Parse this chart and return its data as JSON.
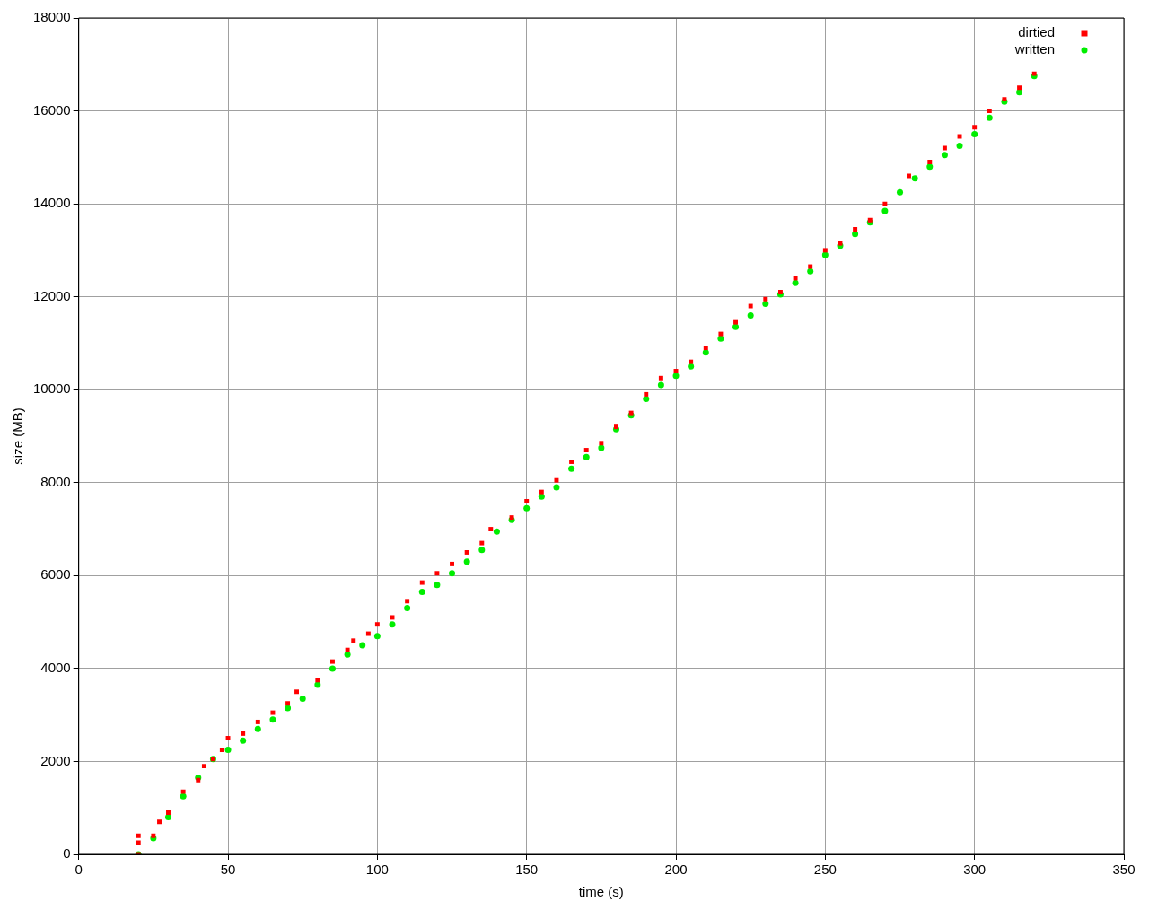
{
  "chart_data": {
    "type": "scatter",
    "xlabel": "time (s)",
    "ylabel": "size (MB)",
    "xlim": [
      0,
      350
    ],
    "xticks": [
      0,
      50,
      100,
      150,
      200,
      250,
      300,
      350
    ],
    "ylim": [
      0,
      18000
    ],
    "yticks": [
      0,
      2000,
      4000,
      6000,
      8000,
      10000,
      12000,
      14000,
      16000,
      18000
    ],
    "grid": true,
    "legend": "top right",
    "series": [
      {
        "name": "dirtied",
        "color": "#ff0000",
        "marker": "square",
        "x": [
          20,
          20,
          20,
          25,
          27,
          30,
          35,
          40,
          42,
          45,
          48,
          50,
          55,
          60,
          65,
          70,
          73,
          80,
          85,
          90,
          92,
          97,
          100,
          105,
          110,
          115,
          120,
          125,
          130,
          135,
          138,
          145,
          150,
          155,
          160,
          165,
          170,
          175,
          180,
          185,
          190,
          195,
          200,
          205,
          210,
          215,
          220,
          225,
          230,
          235,
          240,
          245,
          250,
          255,
          260,
          265,
          270,
          278,
          285,
          290,
          295,
          300,
          305,
          310,
          315,
          320
        ],
        "values": [
          0,
          250,
          400,
          400,
          700,
          900,
          1350,
          1600,
          1900,
          2050,
          2250,
          2500,
          2600,
          2850,
          3050,
          3250,
          3500,
          3750,
          4150,
          4400,
          4600,
          4750,
          4950,
          5100,
          5450,
          5850,
          6050,
          6250,
          6500,
          6700,
          7000,
          7250,
          7600,
          7800,
          8050,
          8450,
          8700,
          8850,
          9200,
          9500,
          9900,
          10250,
          10400,
          10600,
          10900,
          11200,
          11450,
          11800,
          11950,
          12100,
          12400,
          12650,
          13000,
          13150,
          13450,
          13650,
          14000,
          14600,
          14900,
          15200,
          15450,
          15650,
          16000,
          16250,
          16500,
          16800
        ]
      },
      {
        "name": "written",
        "color": "#00ee00",
        "marker": "circle",
        "x": [
          20,
          25,
          30,
          35,
          40,
          45,
          50,
          55,
          60,
          65,
          70,
          75,
          80,
          85,
          90,
          95,
          100,
          105,
          110,
          115,
          120,
          125,
          130,
          135,
          140,
          145,
          150,
          155,
          160,
          165,
          170,
          175,
          180,
          185,
          190,
          195,
          200,
          205,
          210,
          215,
          220,
          225,
          230,
          235,
          240,
          245,
          250,
          255,
          260,
          265,
          270,
          275,
          280,
          285,
          290,
          295,
          300,
          305,
          310,
          315,
          320
        ],
        "values": [
          0,
          350,
          800,
          1250,
          1650,
          2050,
          2250,
          2450,
          2700,
          2900,
          3150,
          3350,
          3650,
          4000,
          4300,
          4500,
          4700,
          4950,
          5300,
          5650,
          5800,
          6050,
          6300,
          6550,
          6950,
          7200,
          7450,
          7700,
          7900,
          8300,
          8550,
          8750,
          9150,
          9450,
          9800,
          10100,
          10300,
          10500,
          10800,
          11100,
          11350,
          11600,
          11850,
          12050,
          12300,
          12550,
          12900,
          13100,
          13350,
          13600,
          13850,
          14250,
          14550,
          14800,
          15050,
          15250,
          15500,
          15850,
          16200,
          16400,
          16750
        ]
      }
    ]
  }
}
